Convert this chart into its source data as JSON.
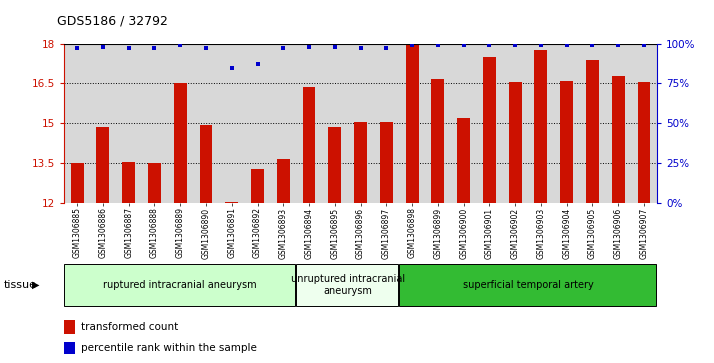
{
  "title": "GDS5186 / 32792",
  "samples": [
    "GSM1306885",
    "GSM1306886",
    "GSM1306887",
    "GSM1306888",
    "GSM1306889",
    "GSM1306890",
    "GSM1306891",
    "GSM1306892",
    "GSM1306893",
    "GSM1306894",
    "GSM1306895",
    "GSM1306896",
    "GSM1306897",
    "GSM1306898",
    "GSM1306899",
    "GSM1306900",
    "GSM1306901",
    "GSM1306902",
    "GSM1306903",
    "GSM1306904",
    "GSM1306905",
    "GSM1306906",
    "GSM1306907"
  ],
  "transformed_count": [
    13.5,
    14.85,
    13.55,
    13.5,
    16.5,
    14.95,
    12.05,
    13.3,
    13.65,
    16.35,
    14.85,
    15.05,
    15.05,
    18.0,
    16.65,
    15.2,
    17.5,
    16.55,
    17.75,
    16.6,
    17.4,
    16.8,
    16.55
  ],
  "percentile_rank": [
    97,
    98,
    97,
    97,
    99,
    97,
    85,
    87,
    97,
    98,
    98,
    97,
    97,
    99,
    99,
    99,
    99,
    99,
    99,
    99,
    99,
    99,
    99
  ],
  "groups": [
    {
      "label": "ruptured intracranial aneurysm",
      "start": 0,
      "end": 9,
      "color": "#ccffcc"
    },
    {
      "label": "unruptured intracranial\naneurysm",
      "start": 9,
      "end": 13,
      "color": "#eeffee"
    },
    {
      "label": "superficial temporal artery",
      "start": 13,
      "end": 23,
      "color": "#33bb33"
    }
  ],
  "ylim": [
    12,
    18
  ],
  "yticks": [
    12,
    13.5,
    15,
    16.5,
    18
  ],
  "right_ytick_vals": [
    0,
    25,
    50,
    75,
    100
  ],
  "bar_color": "#cc1100",
  "dot_color": "#0000cc",
  "background_color": "#d8d8d8",
  "tissue_label": "tissue",
  "legend_bar_label": "transformed count",
  "legend_dot_label": "percentile rank within the sample"
}
